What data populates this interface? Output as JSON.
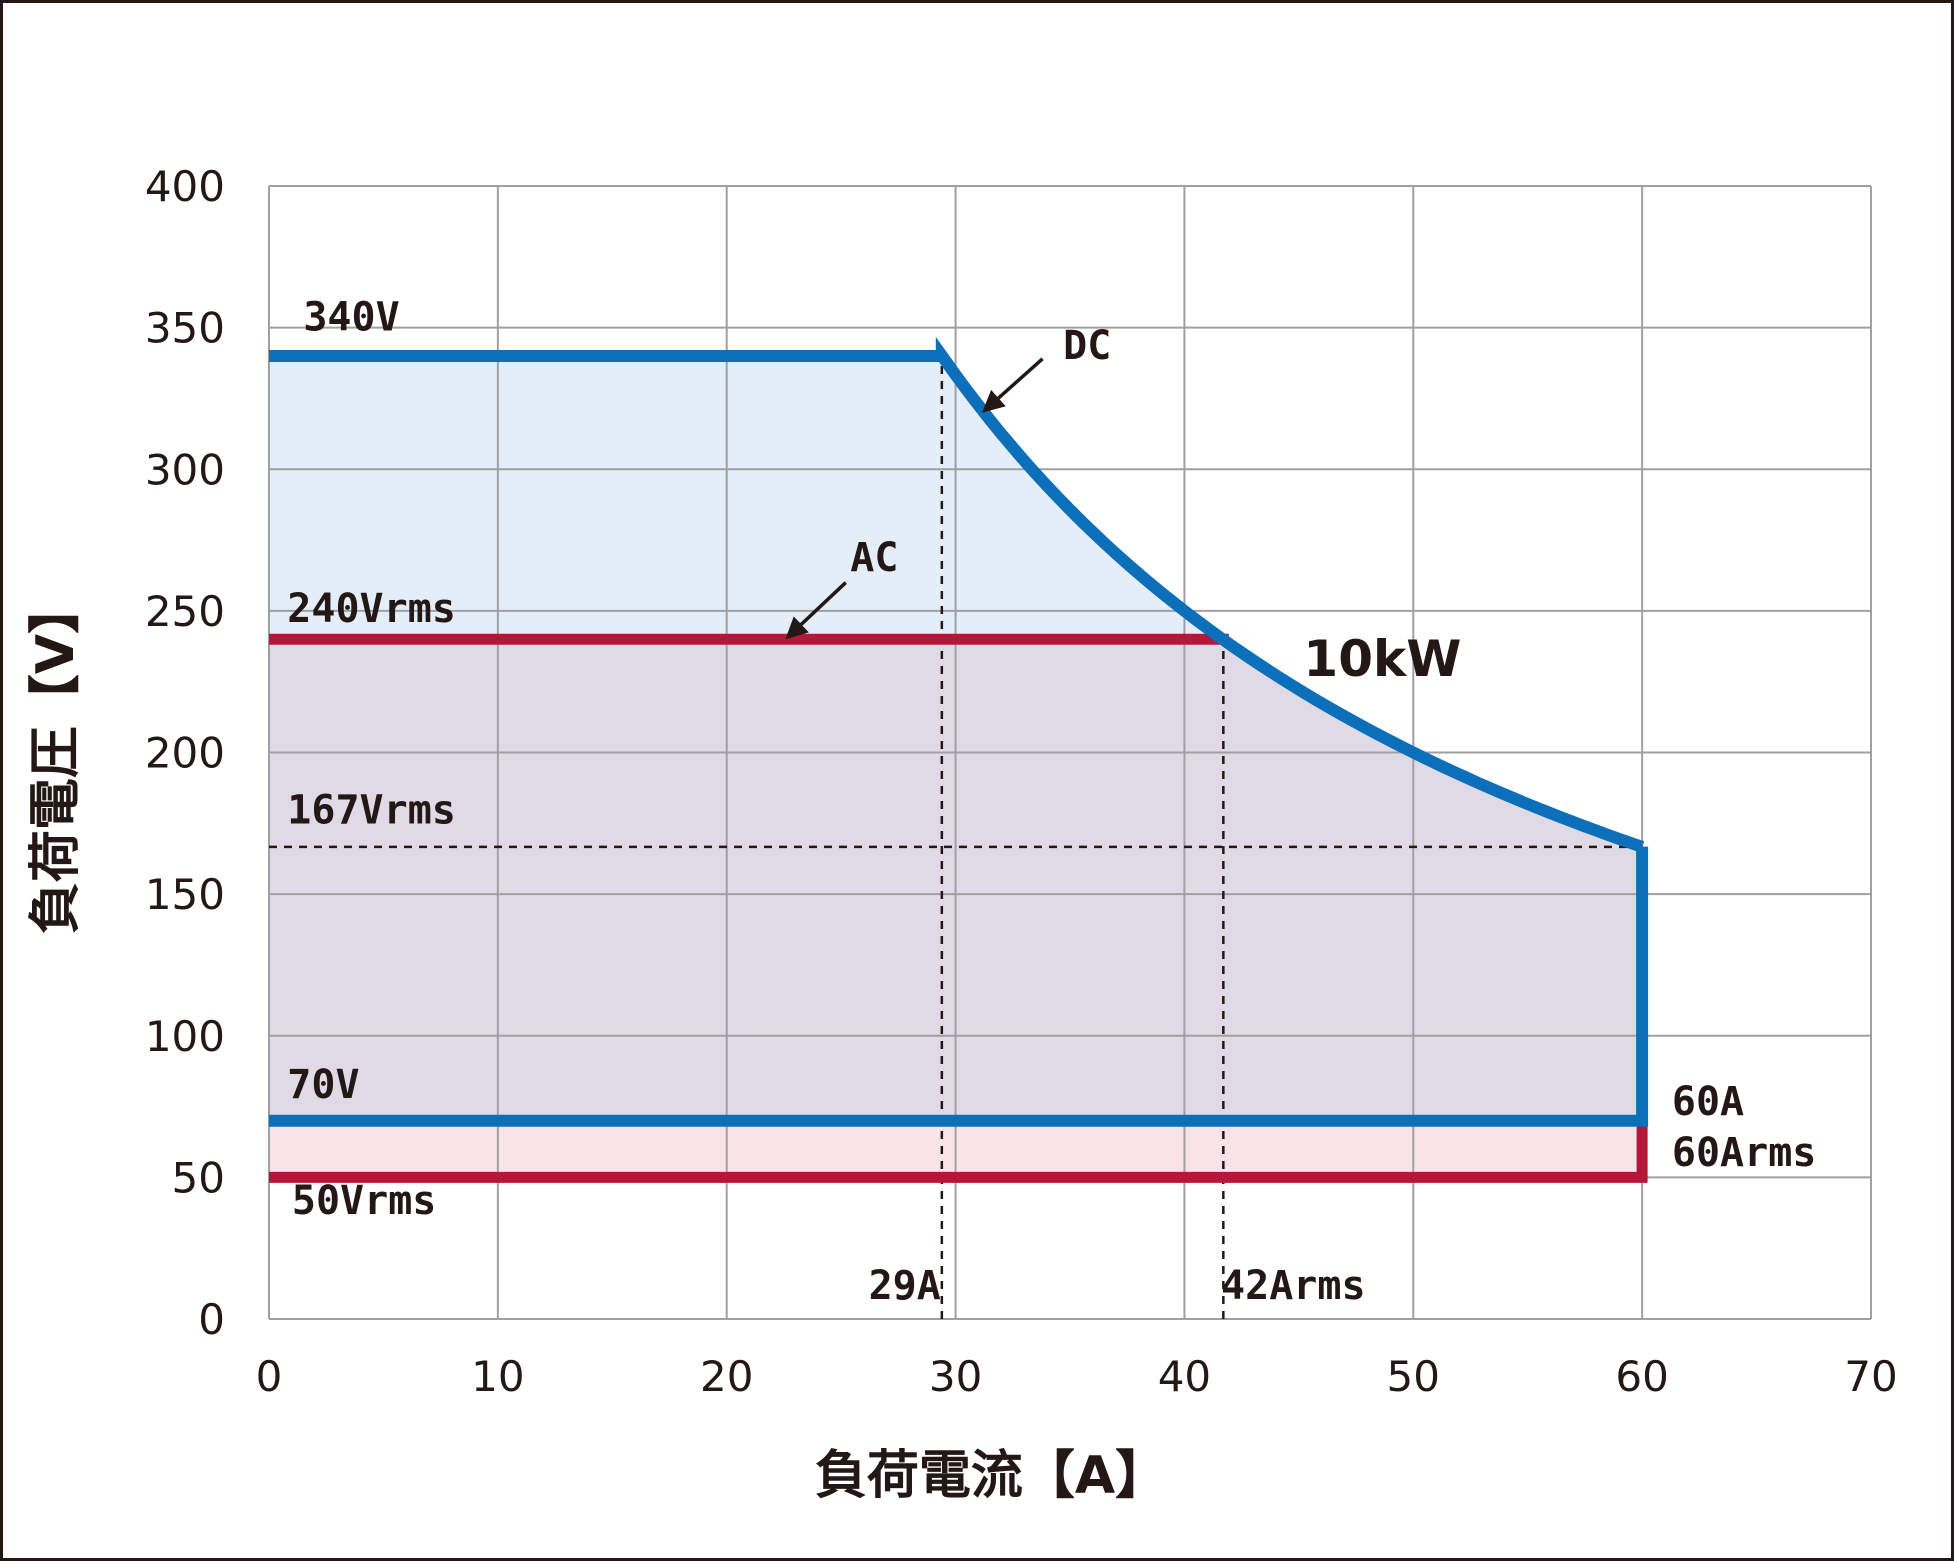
{
  "chart_data": {
    "type": "line",
    "xlabel": "負荷電流【A】",
    "ylabel": "負荷電圧【V】",
    "xlim": [
      0,
      70
    ],
    "ylim": [
      0,
      400
    ],
    "x_ticks": [
      0,
      10,
      20,
      30,
      40,
      50,
      60,
      70
    ],
    "y_ticks": [
      0,
      50,
      100,
      150,
      200,
      250,
      300,
      350,
      400
    ],
    "x_tick_labels": [
      "0",
      "10",
      "20",
      "30",
      "40",
      "50",
      "60",
      "70"
    ],
    "y_tick_labels": [
      "0",
      "50",
      "100",
      "150",
      "200",
      "250",
      "300",
      "350",
      "400"
    ],
    "grid": true,
    "colors": {
      "dc": "#0b6fba",
      "ac": "#b5173a",
      "dc_fill": "#e4eef8",
      "overlap_fill": "#e0dae6",
      "ac_fill": "#f8e4e8",
      "grid": "#a0a0a0",
      "text": "#231815"
    },
    "series": [
      {
        "name": "DC",
        "power_limit_w": 10000,
        "segments": [
          {
            "kind": "line",
            "points": [
              [
                0,
                340
              ],
              [
                29.4,
                340
              ]
            ]
          },
          {
            "kind": "constant_power",
            "x_start": 29.4,
            "x_end": 60
          },
          {
            "kind": "line",
            "points": [
              [
                60,
                166.7
              ],
              [
                60,
                70
              ],
              [
                0,
                70
              ]
            ]
          }
        ]
      },
      {
        "name": "AC",
        "power_limit_w": 10000,
        "segments": [
          {
            "kind": "line",
            "points": [
              [
                0,
                240
              ],
              [
                41.7,
                240
              ]
            ]
          },
          {
            "kind": "constant_power",
            "x_start": 41.7,
            "x_end": 60
          },
          {
            "kind": "line",
            "points": [
              [
                60,
                166.7
              ],
              [
                60,
                50
              ],
              [
                0,
                50
              ]
            ]
          }
        ]
      }
    ],
    "reference_lines": [
      {
        "orientation": "vertical",
        "x": 29.4,
        "y_from": 0,
        "y_to": 340
      },
      {
        "orientation": "vertical",
        "x": 41.7,
        "y_from": 0,
        "y_to": 240
      },
      {
        "orientation": "horizontal",
        "y": 166.7,
        "x_from": 0,
        "x_to": 60
      }
    ],
    "annotations": [
      {
        "id": "v340",
        "text": "340V",
        "x": 1.5,
        "y": 349
      },
      {
        "id": "v240",
        "text": "240Vrms",
        "x": 0.8,
        "y": 246
      },
      {
        "id": "v167",
        "text": "167Vrms",
        "x": 0.8,
        "y": 175
      },
      {
        "id": "v70",
        "text": "70V",
        "x": 0.8,
        "y": 78
      },
      {
        "id": "v50",
        "text": "50Vrms",
        "x": 1,
        "y": 37
      },
      {
        "id": "a29",
        "text": "29A",
        "x": 26.2,
        "y": 7
      },
      {
        "id": "a42",
        "text": "42Arms",
        "x": 41.6,
        "y": 7
      },
      {
        "id": "a60",
        "text": "60A",
        "x": 61.3,
        "y": 72
      },
      {
        "id": "a60rms",
        "text": "60Arms",
        "x": 61.3,
        "y": 54
      },
      {
        "id": "dc",
        "text": "DC",
        "x": 34.7,
        "y": 339
      },
      {
        "id": "ac",
        "text": "AC",
        "x": 25.4,
        "y": 264
      },
      {
        "id": "p10k",
        "text": "10kW",
        "x": 45.2,
        "y": 227
      }
    ],
    "arrows": [
      {
        "id": "dc-arrow",
        "from": [
          33.8,
          339
        ],
        "to": [
          31.3,
          321
        ]
      },
      {
        "id": "ac-arrow",
        "from": [
          25.2,
          260
        ],
        "to": [
          22.7,
          241
        ]
      }
    ]
  }
}
